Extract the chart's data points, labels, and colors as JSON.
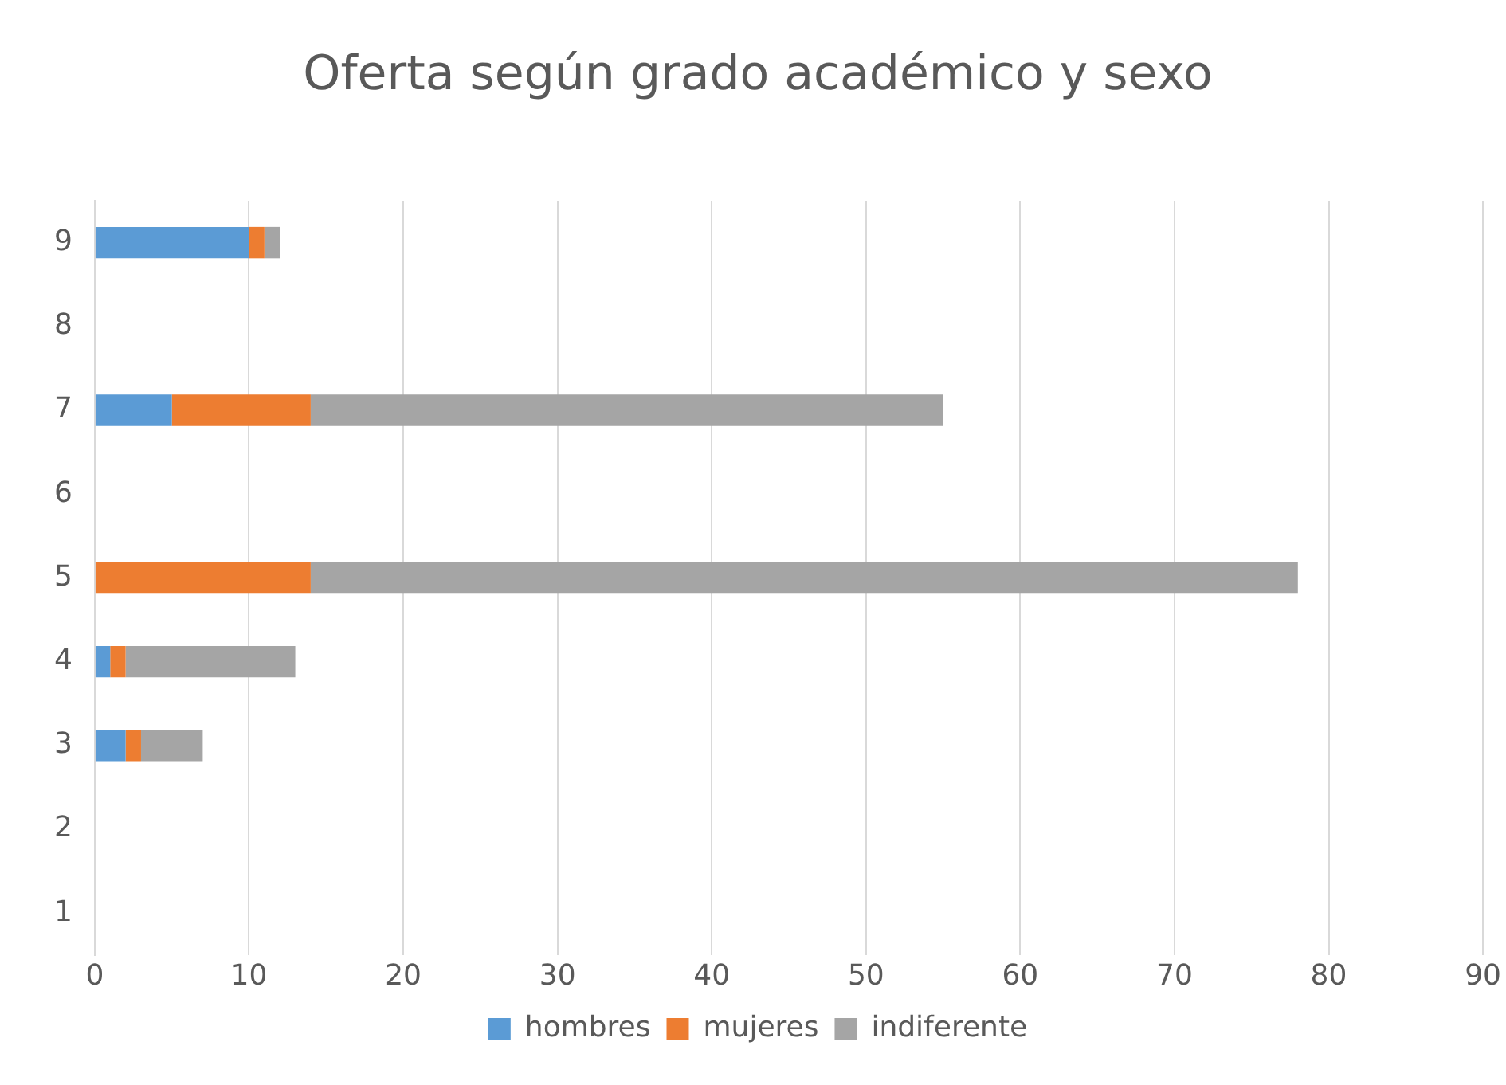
{
  "chart_data": {
    "type": "bar",
    "orientation": "horizontal",
    "stacked": true,
    "title": "Oferta según grado académico y sexo",
    "categories": [
      "9",
      "8",
      "7",
      "6",
      "5",
      "4",
      "3",
      "2",
      "1"
    ],
    "series": [
      {
        "name": "hombres",
        "color": "#5b9bd5",
        "values": [
          10,
          0,
          5,
          0,
          0,
          1,
          2,
          0,
          0
        ]
      },
      {
        "name": "mujeres",
        "color": "#ed7d31",
        "values": [
          1,
          0,
          9,
          0,
          14,
          1,
          1,
          0,
          0
        ]
      },
      {
        "name": "indiferente",
        "color": "#a5a5a5",
        "values": [
          1,
          0,
          41,
          0,
          64,
          11,
          4,
          0,
          0
        ]
      }
    ],
    "xlim": [
      0,
      90
    ],
    "xticks": [
      0,
      10,
      20,
      30,
      40,
      50,
      60,
      70,
      80,
      90
    ],
    "grid": "x",
    "legend": "bottom"
  }
}
